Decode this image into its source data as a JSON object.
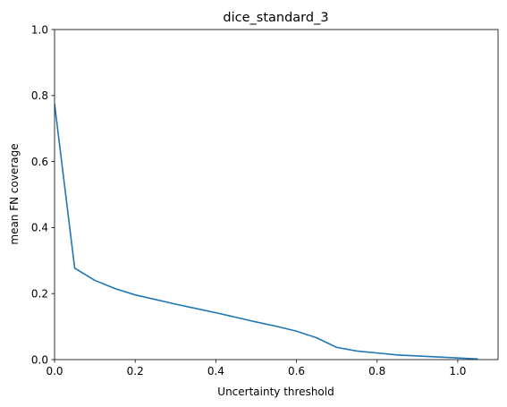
{
  "chart_data": {
    "type": "line",
    "title": "dice_standard_3",
    "xlabel": "Uncertainty threshold",
    "ylabel": "mean FN coverage",
    "xlim": [
      0,
      1.1
    ],
    "ylim": [
      0,
      1.0
    ],
    "x_ticks": [
      "0.0",
      "0.2",
      "0.4",
      "0.6",
      "0.8",
      "1.0"
    ],
    "x_tick_values": [
      0,
      0.2,
      0.4,
      0.6,
      0.8,
      1.0
    ],
    "y_ticks": [
      "0.0",
      "0.2",
      "0.4",
      "0.6",
      "0.8",
      "1.0"
    ],
    "y_tick_values": [
      0,
      0.2,
      0.4,
      0.6,
      0.8,
      1.0
    ],
    "grid": false,
    "series": [
      {
        "color": "#1f77b4",
        "x": [
          0,
          0.05,
          0.1,
          0.15,
          0.2,
          0.25,
          0.3,
          0.35,
          0.4,
          0.45,
          0.5,
          0.55,
          0.6,
          0.65,
          0.7,
          0.75,
          0.8,
          0.85,
          0.9,
          0.95,
          1.0,
          1.05
        ],
        "y": [
          0.775,
          0.277,
          0.24,
          0.215,
          0.196,
          0.182,
          0.168,
          0.155,
          0.142,
          0.128,
          0.114,
          0.101,
          0.086,
          0.066,
          0.037,
          0.026,
          0.02,
          0.014,
          0.011,
          0.008,
          0.005,
          0.002
        ]
      }
    ]
  }
}
